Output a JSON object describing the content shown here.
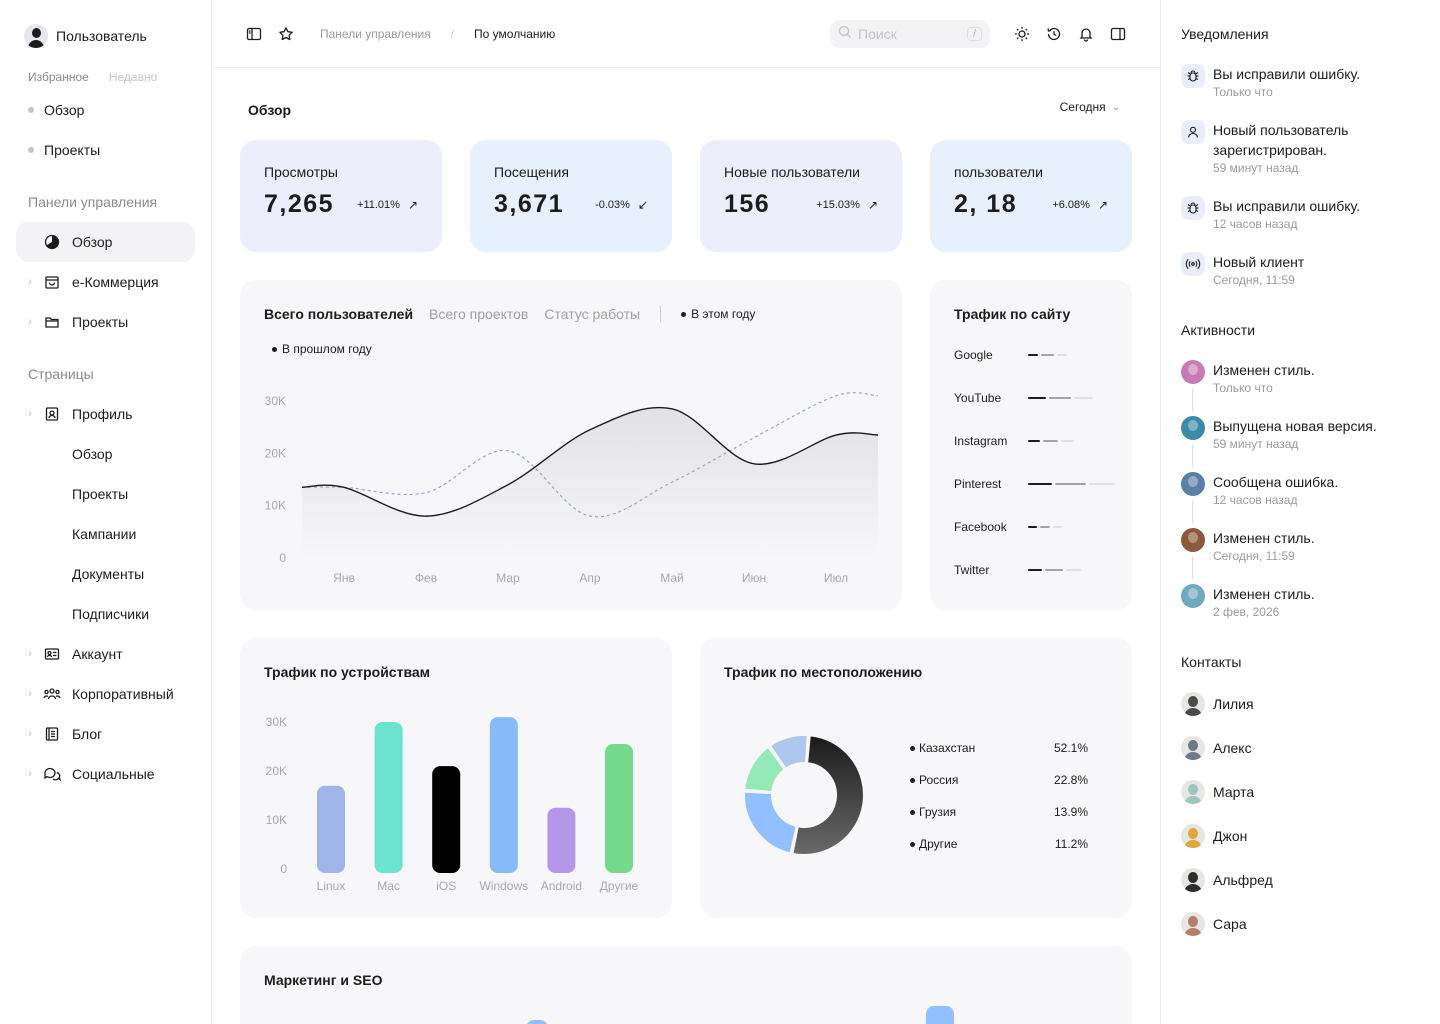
{
  "sidebar": {
    "user_name": "Пользователь",
    "tab_favorites": "Избранное",
    "tab_recent": "Недавно",
    "fav_items": [
      "Обзор",
      "Проекты"
    ],
    "dashboards_label": "Панели управления",
    "dashboards": [
      {
        "label": "Обзор",
        "icon": "pie-chart-icon",
        "active": true
      },
      {
        "label": "е-Коммерция",
        "icon": "shopping-bag-icon"
      },
      {
        "label": "Проекты",
        "icon": "folder-icon"
      }
    ],
    "pages_label": "Страницы",
    "profile": {
      "label": "Профиль",
      "icon": "id-badge-icon"
    },
    "profile_sub": [
      "Обзор",
      "Проекты",
      "Кампании",
      "Документы",
      "Подписчики"
    ],
    "more_pages": [
      {
        "label": "Аккаунт",
        "icon": "id-card-icon"
      },
      {
        "label": "Корпоративный",
        "icon": "users-icon"
      },
      {
        "label": "Блог",
        "icon": "notebook-icon"
      },
      {
        "label": "Социальные",
        "icon": "chat-bubbles-icon"
      }
    ]
  },
  "topbar": {
    "breadcrumb_1": "Панели управления",
    "breadcrumb_sep": "/",
    "breadcrumb_2": "По умолчанию",
    "search_placeholder": "Поиск",
    "search_shortcut": "/"
  },
  "main": {
    "title": "Обзор",
    "period": "Сегодня",
    "stats": [
      {
        "label": "Просмотры",
        "value": "7,265",
        "change": "+11.01%",
        "trend": "up",
        "bg": "#EDEEFC"
      },
      {
        "label": "Посещения",
        "value": "3,671",
        "change": "-0.03%",
        "trend": "down",
        "bg": "#E6F1FD"
      },
      {
        "label": "Новые пользователи",
        "value": "156",
        "change": "+15.03%",
        "trend": "up",
        "bg": "#EDEEFC"
      },
      {
        "label": "пользователи",
        "value": "2, 18",
        "change": "+6.08%",
        "trend": "up",
        "bg": "#E6F1FD"
      }
    ],
    "users_chart": {
      "tab_active": "Всего пользователей",
      "tab_2": "Всего проектов",
      "tab_3": "Статус работы",
      "legend_current": "В этом году",
      "legend_previous": "В прошлом году",
      "y_ticks": [
        "30K",
        "20K",
        "10K",
        "0"
      ],
      "x_ticks": [
        "Янв",
        "Фев",
        "Мар",
        "Апр",
        "Май",
        "Июн",
        "Июл"
      ]
    },
    "site_traffic": {
      "title": "Трафик по сайту",
      "sites": [
        "Google",
        "YouTube",
        "Instagram",
        "Pinterest",
        "Facebook",
        "Twitter"
      ]
    },
    "device_traffic": {
      "title": "Трафик по устройствам",
      "y_ticks": [
        "30K",
        "20K",
        "10K",
        "0"
      ]
    },
    "location_traffic": {
      "title": "Трафик по местоположению"
    },
    "marketing": {
      "title": "Маркетинг и SEO"
    }
  },
  "chart_data": [
    {
      "type": "line",
      "x": [
        "Янв",
        "Фев",
        "Мар",
        "Апр",
        "Май",
        "Июн",
        "Июл"
      ],
      "ylim": [
        0,
        30000
      ],
      "series": [
        {
          "name": "В этом году",
          "values": [
            13500,
            8000,
            14000,
            24500,
            28500,
            18000,
            23500
          ]
        },
        {
          "name": "В прошлом году",
          "values": [
            13500,
            12500,
            20500,
            8000,
            14500,
            23000,
            31000
          ]
        }
      ]
    },
    {
      "type": "bar",
      "categories": [
        "Linux",
        "Mac",
        "iOS",
        "Windows",
        "Android",
        "Другие"
      ],
      "values": [
        17000,
        30000,
        21000,
        31000,
        12500,
        25500
      ],
      "colors": [
        "#A1B4E8",
        "#6BE3D0",
        "#000000",
        "#86BBFA",
        "#B597EA",
        "#74DB8E"
      ],
      "ylim": [
        0,
        30000
      ]
    },
    {
      "type": "pie",
      "labels": [
        "Казахстан",
        "Россия",
        "Грузия",
        "Другие"
      ],
      "values": [
        52.1,
        22.8,
        13.9,
        11.2
      ],
      "value_labels": [
        "52.1%",
        "22.8%",
        "13.9%",
        "11.2%"
      ],
      "colors": [
        "#2A2A2A",
        "#92BFFF",
        "#94E9B8",
        "#AEC7ED"
      ]
    },
    {
      "type": "bar",
      "title": "Трафик по сайту",
      "categories": [
        "Google",
        "YouTube",
        "Instagram",
        "Pinterest",
        "Facebook",
        "Twitter"
      ],
      "values": [
        35,
        62,
        42,
        85,
        30,
        50
      ]
    }
  ],
  "right_panel": {
    "notifications_title": "Уведомления",
    "notifications": [
      {
        "text": "Вы исправили ошибку.",
        "time": "Только что",
        "icon": "bug-icon"
      },
      {
        "text": "Новый пользователь зарегистрирован.",
        "time": "59 минут назад",
        "icon": "user-icon"
      },
      {
        "text": "Вы исправили ошибку.",
        "time": "12 часов назад",
        "icon": "bug-icon"
      },
      {
        "text": "Новый клиент",
        "time": "Сегодня, 11:59",
        "icon": "broadcast-icon"
      }
    ],
    "activities_title": "Активности",
    "activities": [
      {
        "text": "Изменен стиль.",
        "time": "Только что",
        "color": "#C97BB5"
      },
      {
        "text": "Выпущена новая версия.",
        "time": "59 минут назад",
        "color": "#3A8BA6"
      },
      {
        "text": "Сообщена ошибка.",
        "time": "12 часов назад",
        "color": "#5A7FA8"
      },
      {
        "text": "Изменен стиль.",
        "time": "Сегодня, 11:59",
        "color": "#8A5A3A"
      },
      {
        "text": "Изменен стиль.",
        "time": "2 фев, 2026",
        "color": "#6FAAC2"
      }
    ],
    "contacts_title": "Контакты",
    "contacts": [
      {
        "name": "Лилия",
        "color": "#4A4A4A"
      },
      {
        "name": "Алекс",
        "color": "#6C7A88"
      },
      {
        "name": "Марта",
        "color": "#9CC7C0"
      },
      {
        "name": "Джон",
        "color": "#E0A63A"
      },
      {
        "name": "Альфред",
        "color": "#2E2E2E"
      },
      {
        "name": "Сара",
        "color": "#B5806A"
      }
    ]
  }
}
